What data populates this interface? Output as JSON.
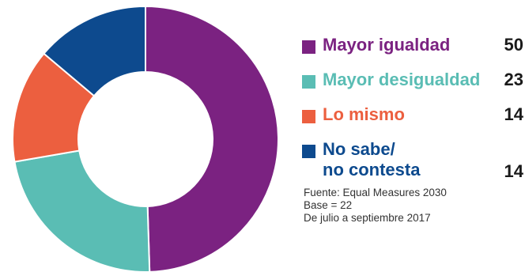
{
  "chart_data": {
    "type": "pie",
    "categories": [
      "Mayor igualdad",
      "Mayor desigualdad",
      "Lo mismo",
      "No sabe/ no contesta"
    ],
    "values": [
      50,
      23,
      14,
      14
    ],
    "colors": [
      "#7b2281",
      "#5abdb4",
      "#ec5f3f",
      "#0d4a8e"
    ],
    "legend": [
      {
        "label": "Mayor igualdad",
        "label_line2": "",
        "value": "50",
        "color": "#7b2281"
      },
      {
        "label": "Mayor desigualdad",
        "label_line2": "",
        "value": "23",
        "color": "#5abdb4"
      },
      {
        "label": "Lo mismo",
        "label_line2": "",
        "value": "14",
        "color": "#ec5f3f"
      },
      {
        "label": "No sabe/",
        "label_line2": "no contesta",
        "value": "14",
        "color": "#0d4a8e"
      }
    ],
    "legend_position": "right"
  },
  "source": {
    "line1": "Fuente:  Equal Measures 2030",
    "line2": "Base = 22",
    "line3": "De julio a septiembre 2017"
  }
}
